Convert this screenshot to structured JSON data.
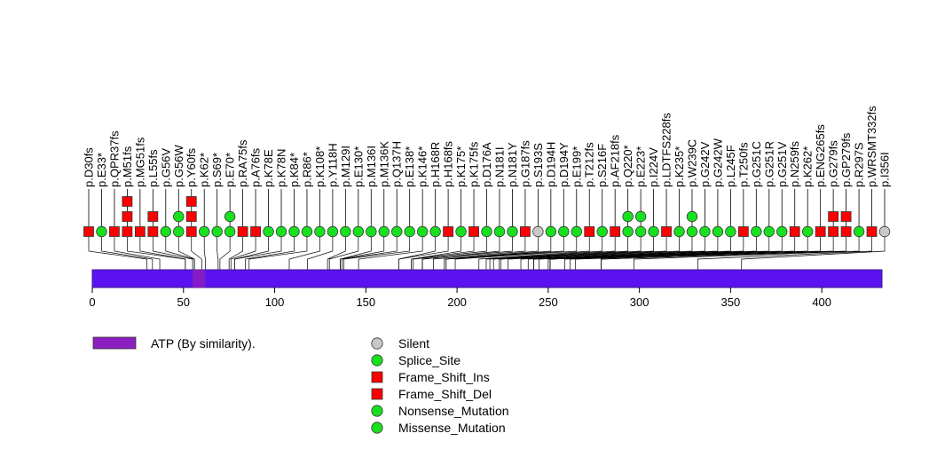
{
  "protein": {
    "length": 433,
    "bar_color": "#5b12f0",
    "bar_border": "#3a1a8a"
  },
  "axis": {
    "ticks": [
      0,
      50,
      100,
      150,
      200,
      250,
      300,
      350,
      400
    ],
    "tick_labels": [
      "0",
      "50",
      "100",
      "150",
      "200",
      "250",
      "300",
      "350",
      "400"
    ]
  },
  "domains": [
    {
      "name": "ATP (By similarity).",
      "start": 55,
      "end": 62,
      "color": "#8b1fbf"
    }
  ],
  "legend": {
    "domain_label": "ATP (By similarity).",
    "domain_color": "#8b1fbf",
    "mutation_types": [
      {
        "label": "Silent",
        "shape": "circle",
        "color": "#c8c8c8"
      },
      {
        "label": "Splice_Site",
        "shape": "circle",
        "color": "#19e01e"
      },
      {
        "label": "Frame_Shift_Ins",
        "shape": "square",
        "color": "#ff0000"
      },
      {
        "label": "Frame_Shift_Del",
        "shape": "square",
        "color": "#ff0000"
      },
      {
        "label": "Nonsense_Mutation",
        "shape": "circle",
        "color": "#19e01e"
      },
      {
        "label": "Missense_Mutation",
        "shape": "circle",
        "color": "#19e01e"
      }
    ]
  },
  "type_styles": {
    "fs": {
      "shape": "square",
      "color": "#ff0000"
    },
    "mis": {
      "shape": "circle",
      "color": "#19e01e"
    },
    "sil": {
      "shape": "circle",
      "color": "#c8c8c8"
    }
  },
  "mutations": [
    {
      "label": "p.D30fs",
      "pos": 30,
      "type": "fs",
      "count": 1
    },
    {
      "label": "p.E33*",
      "pos": 33,
      "type": "mis",
      "count": 1
    },
    {
      "label": "p.QPR37fs",
      "pos": 37,
      "type": "fs",
      "count": 1
    },
    {
      "label": "p.M51fs",
      "pos": 51,
      "type": "fs",
      "count": 3
    },
    {
      "label": "p.MG51fs",
      "pos": 51,
      "type": "fs",
      "count": 1
    },
    {
      "label": "p.L55fs",
      "pos": 55,
      "type": "fs",
      "count": 2
    },
    {
      "label": "p.G56V",
      "pos": 56,
      "type": "mis",
      "count": 1
    },
    {
      "label": "p.G56W",
      "pos": 56,
      "type": "mis",
      "count": 2
    },
    {
      "label": "p.Y60fs",
      "pos": 60,
      "type": "fs",
      "count": 3
    },
    {
      "label": "p.K62*",
      "pos": 62,
      "type": "mis",
      "count": 1
    },
    {
      "label": "p.S69*",
      "pos": 69,
      "type": "mis",
      "count": 1
    },
    {
      "label": "p.E70*",
      "pos": 70,
      "type": "mis",
      "count": 2
    },
    {
      "label": "p.RA75fs",
      "pos": 75,
      "type": "fs",
      "count": 1
    },
    {
      "label": "p.A76fs",
      "pos": 76,
      "type": "fs",
      "count": 1
    },
    {
      "label": "p.K78E",
      "pos": 78,
      "type": "mis",
      "count": 1
    },
    {
      "label": "p.K78N",
      "pos": 78,
      "type": "mis",
      "count": 1
    },
    {
      "label": "p.K84*",
      "pos": 84,
      "type": "mis",
      "count": 1
    },
    {
      "label": "p.R86*",
      "pos": 86,
      "type": "mis",
      "count": 1
    },
    {
      "label": "p.K108*",
      "pos": 108,
      "type": "mis",
      "count": 1
    },
    {
      "label": "p.Y118H",
      "pos": 118,
      "type": "mis",
      "count": 1
    },
    {
      "label": "p.M129I",
      "pos": 129,
      "type": "mis",
      "count": 1
    },
    {
      "label": "p.E130*",
      "pos": 130,
      "type": "mis",
      "count": 1
    },
    {
      "label": "p.M136I",
      "pos": 136,
      "type": "mis",
      "count": 1
    },
    {
      "label": "p.M136K",
      "pos": 136,
      "type": "mis",
      "count": 1
    },
    {
      "label": "p.Q137H",
      "pos": 137,
      "type": "mis",
      "count": 1
    },
    {
      "label": "p.E138*",
      "pos": 138,
      "type": "mis",
      "count": 1
    },
    {
      "label": "p.K146*",
      "pos": 146,
      "type": "mis",
      "count": 1
    },
    {
      "label": "p.H168R",
      "pos": 168,
      "type": "mis",
      "count": 1
    },
    {
      "label": "p.H168fs",
      "pos": 168,
      "type": "fs",
      "count": 1
    },
    {
      "label": "p.K175*",
      "pos": 175,
      "type": "mis",
      "count": 1
    },
    {
      "label": "p.K175fs",
      "pos": 175,
      "type": "fs",
      "count": 1
    },
    {
      "label": "p.D176A",
      "pos": 176,
      "type": "mis",
      "count": 1
    },
    {
      "label": "p.N181I",
      "pos": 181,
      "type": "mis",
      "count": 1
    },
    {
      "label": "p.N181Y",
      "pos": 181,
      "type": "mis",
      "count": 1
    },
    {
      "label": "p.G187fs",
      "pos": 187,
      "type": "fs",
      "count": 1
    },
    {
      "label": "p.S193S",
      "pos": 193,
      "type": "sil",
      "count": 1
    },
    {
      "label": "p.D194H",
      "pos": 194,
      "type": "mis",
      "count": 1
    },
    {
      "label": "p.D194Y",
      "pos": 194,
      "type": "mis",
      "count": 1
    },
    {
      "label": "p.E199*",
      "pos": 199,
      "type": "mis",
      "count": 1
    },
    {
      "label": "p.T212fs",
      "pos": 212,
      "type": "fs",
      "count": 1
    },
    {
      "label": "p.S216F",
      "pos": 216,
      "type": "mis",
      "count": 1
    },
    {
      "label": "p.AF218fs",
      "pos": 218,
      "type": "fs",
      "count": 1
    },
    {
      "label": "p.Q220*",
      "pos": 220,
      "type": "mis",
      "count": 2
    },
    {
      "label": "p.E223*",
      "pos": 223,
      "type": "mis",
      "count": 2
    },
    {
      "label": "p.I224V",
      "pos": 224,
      "type": "mis",
      "count": 1
    },
    {
      "label": "p.LDTFS228fs",
      "pos": 228,
      "type": "fs",
      "count": 1
    },
    {
      "label": "p.K235*",
      "pos": 235,
      "type": "mis",
      "count": 1
    },
    {
      "label": "p.W239C",
      "pos": 239,
      "type": "mis",
      "count": 2
    },
    {
      "label": "p.G242V",
      "pos": 242,
      "type": "mis",
      "count": 1
    },
    {
      "label": "p.G242W",
      "pos": 242,
      "type": "mis",
      "count": 1
    },
    {
      "label": "p.L245F",
      "pos": 245,
      "type": "mis",
      "count": 1
    },
    {
      "label": "p.T250fs",
      "pos": 250,
      "type": "fs",
      "count": 1
    },
    {
      "label": "p.G251C",
      "pos": 251,
      "type": "mis",
      "count": 1
    },
    {
      "label": "p.G251R",
      "pos": 251,
      "type": "mis",
      "count": 1
    },
    {
      "label": "p.G251V",
      "pos": 251,
      "type": "mis",
      "count": 1
    },
    {
      "label": "p.N259fs",
      "pos": 259,
      "type": "fs",
      "count": 1
    },
    {
      "label": "p.K262*",
      "pos": 262,
      "type": "mis",
      "count": 1
    },
    {
      "label": "p.ENG265fs",
      "pos": 265,
      "type": "fs",
      "count": 1
    },
    {
      "label": "p.G279fs",
      "pos": 279,
      "type": "fs",
      "count": 2
    },
    {
      "label": "p.GP279fs",
      "pos": 279,
      "type": "fs",
      "count": 2
    },
    {
      "label": "p.R297S",
      "pos": 297,
      "type": "mis",
      "count": 1
    },
    {
      "label": "p.WRSMT332fs",
      "pos": 332,
      "type": "fs",
      "count": 1
    },
    {
      "label": "p.I356I",
      "pos": 356,
      "type": "sil",
      "count": 1
    }
  ]
}
